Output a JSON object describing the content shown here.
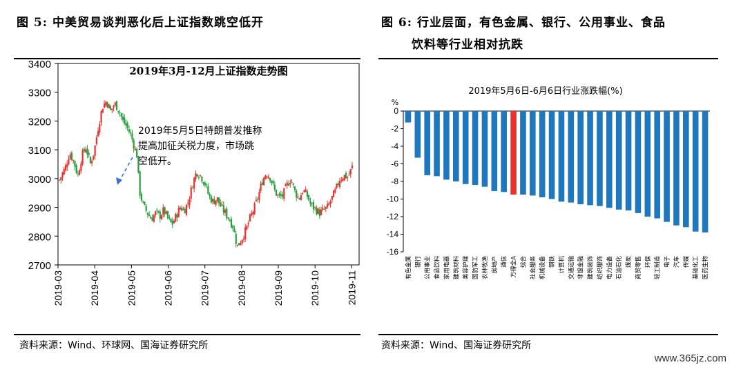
{
  "figures": {
    "left_title": "图 5:  中美贸易谈判恶化后上证指数跳空低开",
    "right_title_line1": "图 6:  行业层面，有色金属、银行、公用事业、食品",
    "right_title_line2": "饮料等行业相对抗跌",
    "left_source": "资料来源：Wind、环球网、国海证券研究所",
    "right_source": "资料来源：Wind、国海证券研究所",
    "watermark": "www.365jz.com"
  },
  "chart_data": [
    {
      "type": "candlestick",
      "title": "2019年3月-12月上证指数走势图",
      "ylim": [
        2700,
        3400
      ],
      "yticks": [
        2700,
        2800,
        2900,
        3000,
        3100,
        3200,
        3300,
        3400
      ],
      "xticks": [
        "2019-03",
        "2019-04",
        "2019-05",
        "2019-06",
        "2019-07",
        "2019-08",
        "2019-09",
        "2019-10",
        "2019-11"
      ],
      "annotation": "2019年5月5日特朗普发推称提高加征关税力度，市场跳空低开。",
      "annotation_lines": [
        "2019年5月5日特朗普发推称",
        "提高加征关税力度，市场跳",
        "空低开。"
      ],
      "colors": {
        "up": "#e8322d",
        "down": "#22a03a"
      },
      "series_close": [
        [
          0,
          2995
        ],
        [
          3,
          3040
        ],
        [
          5,
          3090
        ],
        [
          7,
          3060
        ],
        [
          9,
          3010
        ],
        [
          11,
          3080
        ],
        [
          13,
          3110
        ],
        [
          15,
          3050
        ],
        [
          17,
          3095
        ],
        [
          19,
          3180
        ],
        [
          21,
          3250
        ],
        [
          23,
          3270
        ],
        [
          25,
          3235
        ],
        [
          27,
          3260
        ],
        [
          29,
          3240
        ],
        [
          31,
          3200
        ],
        [
          33,
          3180
        ],
        [
          35,
          3150
        ],
        [
          37,
          3100
        ],
        [
          38,
          3078
        ],
        [
          39,
          2960
        ],
        [
          41,
          2905
        ],
        [
          43,
          2880
        ],
        [
          45,
          2860
        ],
        [
          47,
          2880
        ],
        [
          49,
          2870
        ],
        [
          51,
          2890
        ],
        [
          53,
          2860
        ],
        [
          55,
          2840
        ],
        [
          57,
          2870
        ],
        [
          59,
          2900
        ],
        [
          61,
          2890
        ],
        [
          63,
          2920
        ],
        [
          65,
          2980
        ],
        [
          67,
          3025
        ],
        [
          69,
          3010
        ],
        [
          71,
          2985
        ],
        [
          73,
          2940
        ],
        [
          75,
          2920
        ],
        [
          77,
          2930
        ],
        [
          79,
          2900
        ],
        [
          81,
          2880
        ],
        [
          83,
          2860
        ],
        [
          85,
          2830
        ],
        [
          86,
          2790
        ],
        [
          87,
          2765
        ],
        [
          89,
          2790
        ],
        [
          91,
          2820
        ],
        [
          93,
          2860
        ],
        [
          95,
          2895
        ],
        [
          97,
          2935
        ],
        [
          99,
          2990
        ],
        [
          101,
          3020
        ],
        [
          103,
          3005
        ],
        [
          105,
          2960
        ],
        [
          107,
          2935
        ],
        [
          109,
          2940
        ],
        [
          111,
          2975
        ],
        [
          113,
          3000
        ],
        [
          115,
          2955
        ],
        [
          117,
          2930
        ],
        [
          119,
          2960
        ],
        [
          121,
          2940
        ],
        [
          123,
          2905
        ],
        [
          125,
          2895
        ],
        [
          127,
          2880
        ],
        [
          129,
          2890
        ],
        [
          131,
          2900
        ],
        [
          133,
          2930
        ],
        [
          135,
          2960
        ],
        [
          137,
          3000
        ],
        [
          139,
          3010
        ],
        [
          141,
          3005
        ],
        [
          143,
          3040
        ]
      ]
    },
    {
      "type": "bar",
      "title": "2019年5月6日-6月6日行业涨跌幅(%)",
      "ylabel": "%",
      "ylim": [
        -16,
        0
      ],
      "yticks": [
        0,
        -2,
        -4,
        -6,
        -8,
        -10,
        -12,
        -14,
        -16
      ],
      "categories": [
        "有色金属",
        "银行",
        "公用事业",
        "食品饮料",
        "家用电器",
        "建筑材料",
        "美容护理",
        "国防军工",
        "农林牧渔",
        "房地产",
        "通信",
        "万得全A",
        "综合",
        "社会服务",
        "机械设备",
        "钢铁",
        "计算机",
        "交通运输",
        "非银金融",
        "建筑装饰",
        "纺织服饰",
        "电力设备",
        "石油石化",
        "煤炭",
        "商贸零售",
        "环保",
        "轻工制造",
        "电子",
        "汽车",
        "传媒",
        "基础化工",
        "医药生物"
      ],
      "values": [
        -1.3,
        -5.3,
        -7.3,
        -7.4,
        -7.8,
        -8.0,
        -8.3,
        -8.4,
        -8.6,
        -9.1,
        -9.2,
        -9.5,
        -9.5,
        -9.6,
        -9.8,
        -10.0,
        -10.3,
        -10.4,
        -10.6,
        -10.7,
        -10.8,
        -11.0,
        -11.2,
        -11.3,
        -11.6,
        -12.0,
        -12.2,
        -12.6,
        -13.0,
        -13.2,
        -13.7,
        -13.8
      ],
      "colors": {
        "bar": "#1f77bd",
        "highlight": "#e8322d"
      },
      "highlight_category": "万得全A"
    }
  ]
}
